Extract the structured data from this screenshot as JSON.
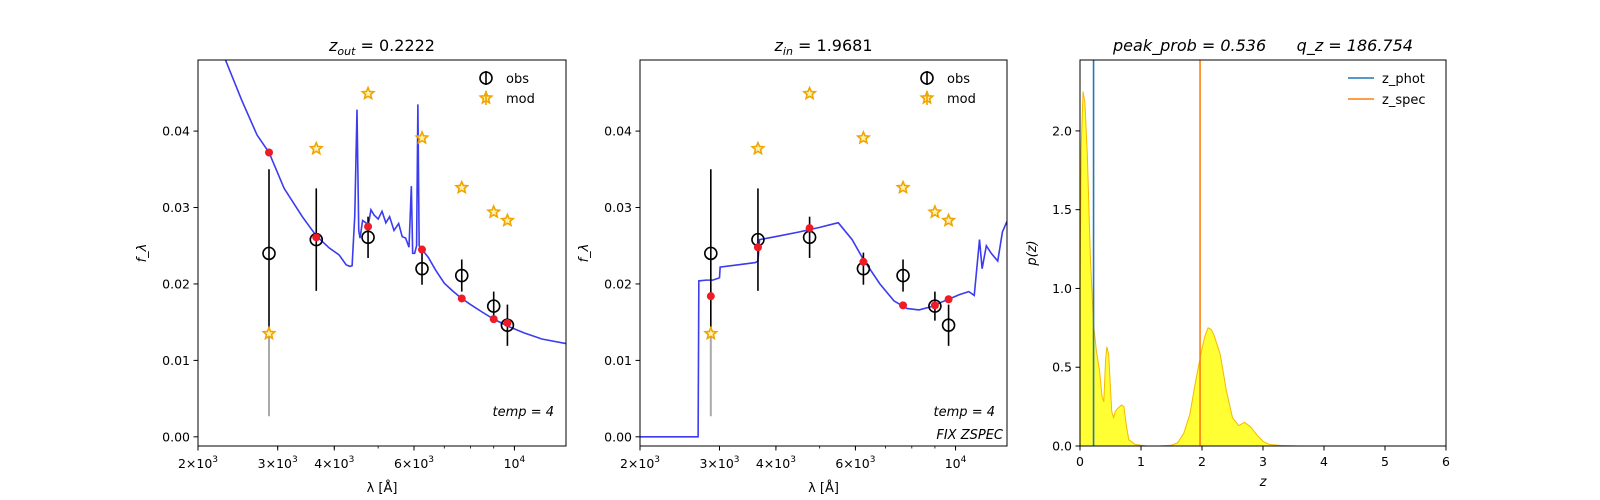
{
  "chart_data": [
    {
      "type": "scatter",
      "title": "z_out = 0.2222",
      "title_html": {
        "base": "z",
        "sub": "out",
        "rest": " = 0.2222"
      },
      "xlabel": "λ [Å]",
      "ylabel": "f_λ",
      "xscale": "log",
      "xlim": [
        2000,
        13000
      ],
      "ylim": [
        -0.0012,
        0.0493
      ],
      "xticks": [
        {
          "v": 2000,
          "base": "2×10",
          "exp": "3"
        },
        {
          "v": 3000,
          "base": "3×10",
          "exp": "3"
        },
        {
          "v": 4000,
          "base": "4×10",
          "exp": "3"
        },
        {
          "v": 6000,
          "base": "6×10",
          "exp": "3"
        },
        {
          "v": 10000,
          "base": "10",
          "exp": "4"
        }
      ],
      "yticks": [
        {
          "v": 0.0,
          "label": "0.00"
        },
        {
          "v": 0.01,
          "label": "0.01"
        },
        {
          "v": 0.02,
          "label": "0.02"
        },
        {
          "v": 0.03,
          "label": "0.03"
        },
        {
          "v": 0.04,
          "label": "0.04"
        }
      ],
      "legend": {
        "location": "top-right",
        "entries": [
          "obs",
          "mod"
        ]
      },
      "annotations": [
        "temp = 4"
      ],
      "obs": [
        {
          "x": 2870,
          "y": 0.024,
          "err": 0.011
        },
        {
          "x": 3650,
          "y": 0.0258,
          "err": 0.0067
        },
        {
          "x": 4750,
          "y": 0.0261,
          "err": 0.0027
        },
        {
          "x": 6250,
          "y": 0.022,
          "err": 0.0021
        },
        {
          "x": 7650,
          "y": 0.0211,
          "err": 0.0021
        },
        {
          "x": 9000,
          "y": 0.0171,
          "err": 0.0019
        },
        {
          "x": 9650,
          "y": 0.0146,
          "err": 0.0027
        }
      ],
      "mod": [
        {
          "x": 2870,
          "y": 0.0135
        },
        {
          "x": 3650,
          "y": 0.0377
        },
        {
          "x": 4750,
          "y": 0.0449
        },
        {
          "x": 6250,
          "y": 0.0391
        },
        {
          "x": 7650,
          "y": 0.0326
        },
        {
          "x": 9000,
          "y": 0.0294
        },
        {
          "x": 9650,
          "y": 0.0283
        }
      ],
      "model_points": [
        {
          "x": 2870,
          "y": 0.0372
        },
        {
          "x": 3650,
          "y": 0.0261
        },
        {
          "x": 4750,
          "y": 0.0275
        },
        {
          "x": 6250,
          "y": 0.0245
        },
        {
          "x": 7650,
          "y": 0.0181
        },
        {
          "x": 9000,
          "y": 0.0154
        },
        {
          "x": 9650,
          "y": 0.0149
        }
      ],
      "limit_line": {
        "x": 2870,
        "y0": 0.0027,
        "y1": 0.0135
      },
      "sed": [
        [
          2300,
          0.0493
        ],
        [
          2500,
          0.044
        ],
        [
          2700,
          0.0395
        ],
        [
          2870,
          0.0372
        ],
        [
          3100,
          0.0325
        ],
        [
          3400,
          0.0288
        ],
        [
          3650,
          0.0263
        ],
        [
          3900,
          0.0247
        ],
        [
          4100,
          0.0238
        ],
        [
          4250,
          0.0225
        ],
        [
          4330,
          0.0223
        ],
        [
          4380,
          0.0224
        ],
        [
          4440,
          0.029
        ],
        [
          4490,
          0.0428
        ],
        [
          4530,
          0.027
        ],
        [
          4560,
          0.026
        ],
        [
          4620,
          0.0283
        ],
        [
          4700,
          0.028
        ],
        [
          4750,
          0.0275
        ],
        [
          4820,
          0.0297
        ],
        [
          4900,
          0.029
        ],
        [
          5000,
          0.0285
        ],
        [
          5100,
          0.0295
        ],
        [
          5200,
          0.028
        ],
        [
          5300,
          0.0288
        ],
        [
          5420,
          0.027
        ],
        [
          5550,
          0.0279
        ],
        [
          5650,
          0.0262
        ],
        [
          5750,
          0.026
        ],
        [
          5850,
          0.0248
        ],
        [
          5920,
          0.0328
        ],
        [
          5960,
          0.024
        ],
        [
          6020,
          0.024
        ],
        [
          6080,
          0.025
        ],
        [
          6120,
          0.0435
        ],
        [
          6160,
          0.025
        ],
        [
          6250,
          0.0245
        ],
        [
          6450,
          0.0235
        ],
        [
          6700,
          0.0218
        ],
        [
          7000,
          0.0201
        ],
        [
          7300,
          0.0191
        ],
        [
          7650,
          0.0181
        ],
        [
          8000,
          0.0173
        ],
        [
          8500,
          0.0163
        ],
        [
          9000,
          0.0154
        ],
        [
          9650,
          0.0145
        ],
        [
          10500,
          0.0136
        ],
        [
          11500,
          0.0128
        ],
        [
          13000,
          0.0122
        ]
      ]
    },
    {
      "type": "scatter",
      "title": "z_in = 1.9681",
      "title_html": {
        "base": "z",
        "sub": "in",
        "rest": " = 1.9681"
      },
      "xlabel": "λ [Å]",
      "ylabel": "f_λ",
      "xscale": "log",
      "xlim": [
        2000,
        13000
      ],
      "ylim": [
        -0.0012,
        0.0493
      ],
      "xticks": [
        {
          "v": 2000,
          "base": "2×10",
          "exp": "3"
        },
        {
          "v": 3000,
          "base": "3×10",
          "exp": "3"
        },
        {
          "v": 4000,
          "base": "4×10",
          "exp": "3"
        },
        {
          "v": 6000,
          "base": "6×10",
          "exp": "3"
        },
        {
          "v": 10000,
          "base": "10",
          "exp": "4"
        }
      ],
      "yticks": [
        {
          "v": 0.0,
          "label": "0.00"
        },
        {
          "v": 0.01,
          "label": "0.01"
        },
        {
          "v": 0.02,
          "label": "0.02"
        },
        {
          "v": 0.03,
          "label": "0.03"
        },
        {
          "v": 0.04,
          "label": "0.04"
        }
      ],
      "legend": {
        "location": "top-right",
        "entries": [
          "obs",
          "mod"
        ]
      },
      "annotations": [
        "temp = 4",
        "FIX ZSPEC"
      ],
      "obs": [
        {
          "x": 2870,
          "y": 0.024,
          "err": 0.011
        },
        {
          "x": 3650,
          "y": 0.0258,
          "err": 0.0067
        },
        {
          "x": 4750,
          "y": 0.0261,
          "err": 0.0027
        },
        {
          "x": 6250,
          "y": 0.022,
          "err": 0.0021
        },
        {
          "x": 7650,
          "y": 0.0211,
          "err": 0.0021
        },
        {
          "x": 9000,
          "y": 0.0171,
          "err": 0.0019
        },
        {
          "x": 9650,
          "y": 0.0146,
          "err": 0.0027
        }
      ],
      "mod": [
        {
          "x": 2870,
          "y": 0.0135
        },
        {
          "x": 3650,
          "y": 0.0377
        },
        {
          "x": 4750,
          "y": 0.0449
        },
        {
          "x": 6250,
          "y": 0.0391
        },
        {
          "x": 7650,
          "y": 0.0326
        },
        {
          "x": 9000,
          "y": 0.0294
        },
        {
          "x": 9650,
          "y": 0.0283
        }
      ],
      "model_points": [
        {
          "x": 2870,
          "y": 0.0184
        },
        {
          "x": 3650,
          "y": 0.0248
        },
        {
          "x": 4750,
          "y": 0.0273
        },
        {
          "x": 6250,
          "y": 0.0229
        },
        {
          "x": 7650,
          "y": 0.0172
        },
        {
          "x": 9000,
          "y": 0.0172
        },
        {
          "x": 9650,
          "y": 0.018
        }
      ],
      "limit_line": {
        "x": 2870,
        "y0": 0.0027,
        "y1": 0.0135
      },
      "sed": [
        [
          2000,
          0.0
        ],
        [
          2690,
          0.0
        ],
        [
          2700,
          0.0204
        ],
        [
          2800,
          0.0205
        ],
        [
          2900,
          0.0205
        ],
        [
          3000,
          0.0208
        ],
        [
          3010,
          0.0222
        ],
        [
          3300,
          0.0225
        ],
        [
          3600,
          0.0228
        ],
        [
          3650,
          0.023
        ],
        [
          3680,
          0.0258
        ],
        [
          4000,
          0.0262
        ],
        [
          4500,
          0.0268
        ],
        [
          5000,
          0.0274
        ],
        [
          5400,
          0.0279
        ],
        [
          5500,
          0.028
        ],
        [
          5900,
          0.0258
        ],
        [
          6250,
          0.0232
        ],
        [
          6800,
          0.02
        ],
        [
          7300,
          0.0178
        ],
        [
          7800,
          0.0168
        ],
        [
          8300,
          0.0166
        ],
        [
          8800,
          0.017
        ],
        [
          9200,
          0.0175
        ],
        [
          9650,
          0.018
        ],
        [
          10200,
          0.0186
        ],
        [
          10700,
          0.019
        ],
        [
          11000,
          0.0185
        ],
        [
          11300,
          0.0258
        ],
        [
          11450,
          0.022
        ],
        [
          11700,
          0.025
        ],
        [
          12000,
          0.024
        ],
        [
          12400,
          0.023
        ],
        [
          12700,
          0.0268
        ],
        [
          13000,
          0.0282
        ]
      ]
    },
    {
      "type": "area",
      "title": "peak_prob = 0.536      q_z = 186.754",
      "xlabel": "z",
      "ylabel": "p(z)",
      "xlim": [
        0,
        6
      ],
      "ylim": [
        0,
        2.45
      ],
      "xticks": [
        {
          "v": 0,
          "label": "0"
        },
        {
          "v": 1,
          "label": "1"
        },
        {
          "v": 2,
          "label": "2"
        },
        {
          "v": 3,
          "label": "3"
        },
        {
          "v": 4,
          "label": "4"
        },
        {
          "v": 5,
          "label": "5"
        },
        {
          "v": 6,
          "label": "6"
        }
      ],
      "yticks": [
        {
          "v": 0.0,
          "label": "0.0"
        },
        {
          "v": 0.5,
          "label": "0.5"
        },
        {
          "v": 1.0,
          "label": "1.0"
        },
        {
          "v": 1.5,
          "label": "1.5"
        },
        {
          "v": 2.0,
          "label": "2.0"
        }
      ],
      "legend": {
        "location": "top-right",
        "entries": [
          "z_phot",
          "z_spec"
        ]
      },
      "z_phot": 0.2222,
      "z_spec": 1.9681,
      "colors": {
        "z_phot": "#1f77b4",
        "z_spec": "#ff7f0e",
        "fill": "#ffff33",
        "edge": "#f5b800"
      },
      "pz": [
        [
          0,
          1.0
        ],
        [
          0.02,
          1.9
        ],
        [
          0.05,
          2.25
        ],
        [
          0.08,
          2.18
        ],
        [
          0.12,
          1.85
        ],
        [
          0.17,
          1.2
        ],
        [
          0.22,
          0.78
        ],
        [
          0.27,
          0.6
        ],
        [
          0.32,
          0.48
        ],
        [
          0.36,
          0.32
        ],
        [
          0.39,
          0.28
        ],
        [
          0.42,
          0.55
        ],
        [
          0.44,
          0.63
        ],
        [
          0.47,
          0.58
        ],
        [
          0.52,
          0.22
        ],
        [
          0.55,
          0.18
        ],
        [
          0.58,
          0.22
        ],
        [
          0.62,
          0.24
        ],
        [
          0.68,
          0.26
        ],
        [
          0.72,
          0.25
        ],
        [
          0.76,
          0.13
        ],
        [
          0.8,
          0.04
        ],
        [
          0.9,
          0.01
        ],
        [
          1.0,
          0.005
        ],
        [
          1.1,
          0.0
        ],
        [
          1.3,
          0.0
        ],
        [
          1.5,
          0.005
        ],
        [
          1.6,
          0.02
        ],
        [
          1.7,
          0.08
        ],
        [
          1.8,
          0.2
        ],
        [
          1.9,
          0.42
        ],
        [
          2.0,
          0.62
        ],
        [
          2.05,
          0.7
        ],
        [
          2.1,
          0.75
        ],
        [
          2.15,
          0.74
        ],
        [
          2.2,
          0.7
        ],
        [
          2.3,
          0.58
        ],
        [
          2.4,
          0.35
        ],
        [
          2.5,
          0.18
        ],
        [
          2.6,
          0.13
        ],
        [
          2.7,
          0.15
        ],
        [
          2.8,
          0.12
        ],
        [
          2.9,
          0.07
        ],
        [
          3.0,
          0.03
        ],
        [
          3.1,
          0.01
        ],
        [
          3.3,
          0.003
        ],
        [
          3.6,
          0.0
        ],
        [
          4.0,
          0.0
        ],
        [
          5.0,
          0.0
        ]
      ]
    }
  ],
  "colors": {
    "obs": "#000000",
    "mod": "#f0a500",
    "model_points": "#ee1c25",
    "sed": "#3b3bf0",
    "limit": "#aaaaaa"
  }
}
